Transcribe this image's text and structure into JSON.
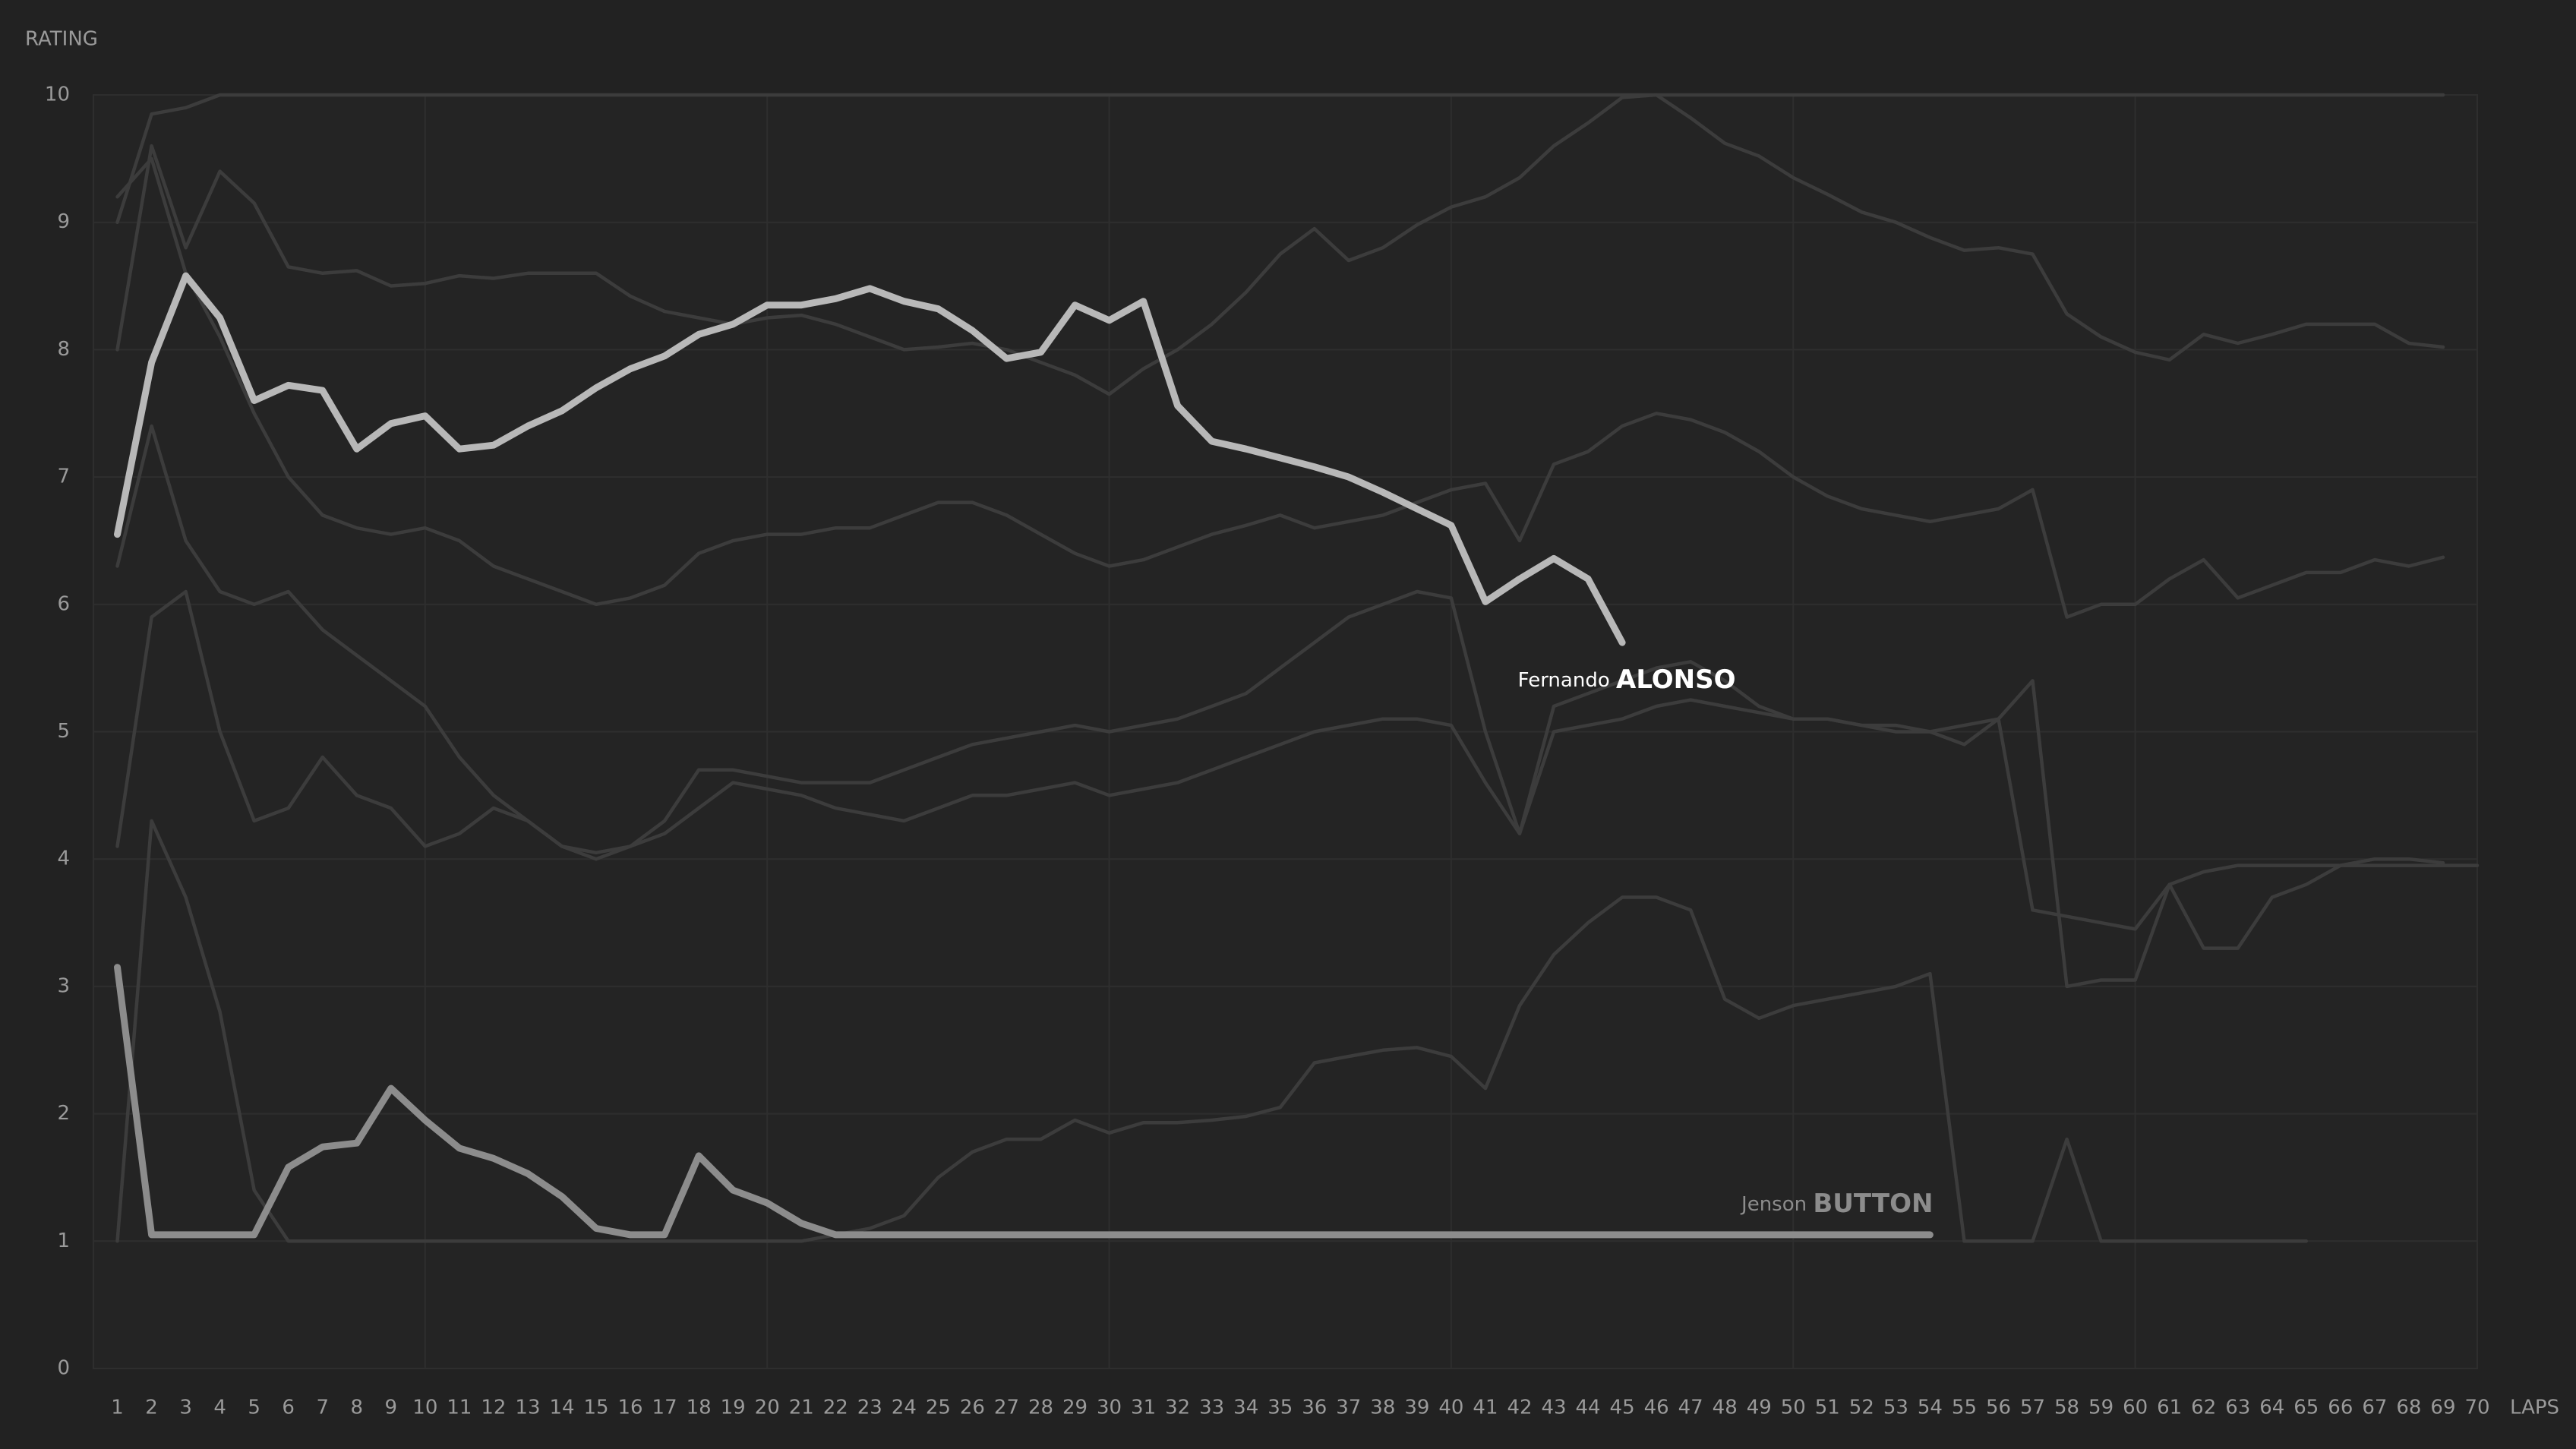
{
  "chart_data": {
    "type": "line",
    "y_label": "RATING",
    "x_label": "LAPS",
    "x": [
      1,
      2,
      3,
      4,
      5,
      6,
      7,
      8,
      9,
      10,
      11,
      12,
      13,
      14,
      15,
      16,
      17,
      18,
      19,
      20,
      21,
      22,
      23,
      24,
      25,
      26,
      27,
      28,
      29,
      30,
      31,
      32,
      33,
      34,
      35,
      36,
      37,
      38,
      39,
      40,
      41,
      42,
      43,
      44,
      45,
      46,
      47,
      48,
      49,
      50,
      51,
      52,
      53,
      54,
      55,
      56,
      57,
      58,
      59,
      60,
      61,
      62,
      63,
      64,
      65,
      66,
      67,
      68,
      69,
      70
    ],
    "xlim": [
      0.3,
      70
    ],
    "xticks": [
      1,
      2,
      3,
      4,
      5,
      6,
      7,
      8,
      9,
      10,
      11,
      12,
      13,
      14,
      15,
      16,
      17,
      18,
      19,
      20,
      21,
      22,
      23,
      24,
      25,
      26,
      27,
      28,
      29,
      30,
      31,
      32,
      33,
      34,
      35,
      36,
      37,
      38,
      39,
      40,
      41,
      42,
      43,
      44,
      45,
      46,
      47,
      48,
      49,
      50,
      51,
      52,
      53,
      54,
      55,
      56,
      57,
      58,
      59,
      60,
      61,
      62,
      63,
      64,
      65,
      66,
      67,
      68,
      69,
      70
    ],
    "ylim": [
      0,
      10
    ],
    "yticks": [
      0,
      1,
      2,
      3,
      4,
      5,
      6,
      7,
      8,
      9,
      10
    ],
    "grid": true,
    "series": [
      {
        "color": "#3c3c3c",
        "values": [
          9.0,
          9.85,
          9.9,
          10,
          10,
          10,
          10,
          10,
          10,
          10,
          10,
          10,
          10,
          10,
          10,
          10,
          10,
          10,
          10,
          10,
          10,
          10,
          10,
          10,
          10,
          10,
          10,
          10,
          10,
          10,
          10,
          10,
          10,
          10,
          10,
          10,
          10,
          10,
          10,
          10,
          10,
          10,
          10,
          10,
          10,
          10,
          10,
          10,
          10,
          10,
          10,
          10,
          10,
          10,
          10,
          10,
          10,
          10,
          10,
          10,
          10,
          10,
          10,
          10,
          10,
          10,
          10,
          10,
          10,
          null
        ]
      },
      {
        "color": "#3c3c3c",
        "values": [
          8.0,
          9.6,
          8.8,
          9.4,
          9.15,
          8.65,
          8.6,
          8.62,
          8.5,
          8.52,
          8.58,
          8.56,
          8.6,
          8.6,
          8.6,
          8.42,
          8.3,
          8.25,
          8.2,
          8.25,
          8.27,
          8.2,
          8.1,
          8.0,
          8.02,
          8.05,
          8.0,
          7.9,
          7.8,
          7.65,
          7.85,
          8.0,
          8.2,
          8.45,
          8.75,
          8.95,
          8.7,
          8.8,
          8.98,
          9.12,
          9.2,
          9.35,
          9.6,
          9.78,
          9.98,
          10,
          9.82,
          9.62,
          9.52,
          9.35,
          9.22,
          9.08,
          9.0,
          8.88,
          8.78,
          8.8,
          8.75,
          8.28,
          8.1,
          7.98,
          7.92,
          8.12,
          8.05,
          8.12,
          8.2,
          8.2,
          8.2,
          8.05,
          8.02,
          null
        ]
      },
      {
        "color": "#3c3c3c",
        "values": [
          9.2,
          9.5,
          8.6,
          8.1,
          7.5,
          7.0,
          6.7,
          6.6,
          6.55,
          6.6,
          6.5,
          6.3,
          6.2,
          6.1,
          6.0,
          6.05,
          6.15,
          6.4,
          6.5,
          6.55,
          6.55,
          6.6,
          6.6,
          6.7,
          6.8,
          6.8,
          6.7,
          6.55,
          6.4,
          6.3,
          6.35,
          6.45,
          6.55,
          6.62,
          6.7,
          6.6,
          6.65,
          6.7,
          6.8,
          6.9,
          6.95,
          6.5,
          7.1,
          7.2,
          7.4,
          7.5,
          7.45,
          7.35,
          7.2,
          7.0,
          6.85,
          6.75,
          6.7,
          6.65,
          6.7,
          6.75,
          6.9,
          5.9,
          6.0,
          6.0,
          6.2,
          6.35,
          6.05,
          6.15,
          6.25,
          6.25,
          6.35,
          6.3,
          6.37,
          null
        ]
      },
      {
        "color": "#3c3c3c",
        "values": [
          4.1,
          5.9,
          6.1,
          5.0,
          4.3,
          4.4,
          4.8,
          4.5,
          4.4,
          4.1,
          4.2,
          4.4,
          4.3,
          4.1,
          4.05,
          4.1,
          4.2,
          4.4,
          4.6,
          4.55,
          4.5,
          4.4,
          4.35,
          4.3,
          4.4,
          4.5,
          4.5,
          4.55,
          4.6,
          4.5,
          4.55,
          4.6,
          4.7,
          4.8,
          4.9,
          5.0,
          5.05,
          5.1,
          5.1,
          5.05,
          4.6,
          4.2,
          5.0,
          5.05,
          5.1,
          5.2,
          5.25,
          5.2,
          5.15,
          5.1,
          5.1,
          5.05,
          5.0,
          5.0,
          5.05,
          5.1,
          3.6,
          3.55,
          3.5,
          3.45,
          3.8,
          3.9,
          3.95,
          3.95,
          3.95,
          3.95,
          3.95,
          3.95,
          3.95,
          3.95
        ]
      },
      {
        "color": "#3c3c3c",
        "values": [
          1.0,
          4.3,
          3.7,
          2.8,
          1.4,
          1.0,
          1.0,
          1.0,
          1.0,
          1.0,
          1.0,
          1.0,
          1.0,
          1.0,
          1.0,
          1.0,
          1.0,
          1.0,
          1.0,
          1.0,
          1.0,
          1.05,
          1.1,
          1.2,
          1.5,
          1.7,
          1.8,
          1.8,
          1.95,
          1.85,
          1.93,
          1.93,
          1.95,
          1.98,
          2.05,
          2.4,
          2.45,
          2.5,
          2.52,
          2.45,
          2.2,
          2.85,
          3.25,
          3.5,
          3.7,
          3.7,
          3.6,
          2.9,
          2.75,
          2.85,
          2.9,
          2.95,
          3.0,
          3.1,
          1.0,
          1.0,
          1.0,
          1.8,
          1.0,
          1.0,
          1.0,
          1.0,
          1.0,
          1.0,
          1.0,
          null,
          null,
          null,
          null,
          null
        ]
      },
      {
        "color": "#3c3c3c",
        "values": [
          6.3,
          7.4,
          6.5,
          6.1,
          6.0,
          6.1,
          5.8,
          5.6,
          5.4,
          5.2,
          4.8,
          4.5,
          4.3,
          4.1,
          4.0,
          4.1,
          4.3,
          4.7,
          4.7,
          4.65,
          4.6,
          4.6,
          4.6,
          4.7,
          4.8,
          4.9,
          4.95,
          5.0,
          5.05,
          5.0,
          5.05,
          5.1,
          5.2,
          5.3,
          5.5,
          5.7,
          5.9,
          6.0,
          6.1,
          6.05,
          5.0,
          4.2,
          5.2,
          5.3,
          5.4,
          5.5,
          5.55,
          5.4,
          5.2,
          5.1,
          5.1,
          5.05,
          5.05,
          5.0,
          4.9,
          5.1,
          5.4,
          3.0,
          3.05,
          3.05,
          3.8,
          3.3,
          3.3,
          3.7,
          3.8,
          3.95,
          4.0,
          4.0,
          3.97,
          null
        ]
      },
      {
        "name_first": "Jenson",
        "name_last": "BUTTON",
        "color": "#8c8c8c",
        "values": [
          3.15,
          1.05,
          1.05,
          1.05,
          1.05,
          1.58,
          1.74,
          1.77,
          2.2,
          1.95,
          1.73,
          1.65,
          1.53,
          1.35,
          1.1,
          1.05,
          1.05,
          1.67,
          1.4,
          1.3,
          1.14,
          1.05,
          1.05,
          1.05,
          1.05,
          1.05,
          1.05,
          1.05,
          1.05,
          1.05,
          1.05,
          1.05,
          1.05,
          1.05,
          1.05,
          1.05,
          1.05,
          1.05,
          1.05,
          1.05,
          1.05,
          1.05,
          1.05,
          1.05,
          1.05,
          1.05,
          1.05,
          1.05,
          1.05,
          1.05,
          1.05,
          1.05,
          1.05,
          1.05,
          null,
          null,
          null,
          null,
          null,
          null,
          null,
          null,
          null,
          null,
          null,
          null,
          null,
          null,
          null,
          null
        ]
      },
      {
        "name_first": "Fernando",
        "name_last": "ALONSO",
        "color": "#b8b8b8",
        "values": [
          6.55,
          7.9,
          8.58,
          8.25,
          7.6,
          7.72,
          7.68,
          7.22,
          7.42,
          7.48,
          7.22,
          7.25,
          7.4,
          7.52,
          7.7,
          7.85,
          7.95,
          8.12,
          8.2,
          8.35,
          8.35,
          8.4,
          8.48,
          8.38,
          8.32,
          8.15,
          7.93,
          7.98,
          8.35,
          8.23,
          8.38,
          7.56,
          7.28,
          7.22,
          7.15,
          7.08,
          7.0,
          6.88,
          6.75,
          6.62,
          6.02,
          6.2,
          6.36,
          6.2,
          5.7,
          null,
          null,
          null,
          null,
          null,
          null,
          null,
          null,
          null,
          null,
          null,
          null,
          null,
          null,
          null,
          null,
          null,
          null,
          null,
          null,
          null,
          null,
          null,
          null,
          null
        ]
      }
    ]
  }
}
